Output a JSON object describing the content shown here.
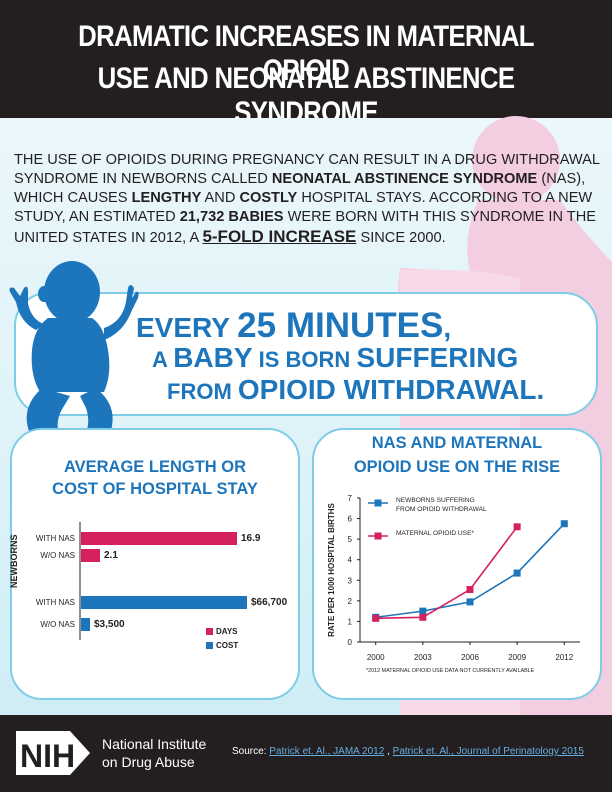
{
  "header": {
    "title_line1": "DRAMATIC INCREASES IN MATERNAL OPIOID",
    "title_line2": "USE AND NEONATAL ABSTINENCE SYNDROME"
  },
  "intro": {
    "p1": "THE USE OF OPIOIDS DURING PREGNANCY CAN RESULT IN A DRUG WITHDRAWAL SYNDROME IN NEWBORNS CALLED ",
    "nas_term": "NEONATAL ABSTINENCE SYNDROME",
    "p2": " (NAS), WHICH CAUSES ",
    "lengthy": "LENGTHY",
    "p3": " AND ",
    "costly": "COSTLY",
    "p4": " HOSPITAL STAYS. ACCORDING TO A NEW STUDY, AN ESTIMATED ",
    "babies": "21,732 BABIES",
    "p5": " WERE BORN WITH THIS SYNDROME IN THE UNITED STATES IN 2012, A ",
    "fold": "5-FOLD INCREASE",
    "p6": " SINCE 2000."
  },
  "banner": {
    "every": "EVERY ",
    "minutes": "25 MINUTES",
    "comma": ",",
    "a": "A ",
    "baby": "BABY",
    "is_born": " IS BORN ",
    "suffering": "SUFFERING",
    "from": "FROM ",
    "withdrawal": "OPIOID WITHDRAWAL",
    "period": "."
  },
  "left_panel": {
    "title_line1": "AVERAGE LENGTH OR",
    "title_line2": "COST OF HOSPITAL STAY",
    "y_label": "NEWBORNS",
    "legend_days": "DAYS",
    "legend_cost": "COST",
    "colors": {
      "days": "#d6215f",
      "cost": "#1d75bc"
    }
  },
  "right_panel": {
    "title_line1": "NAS AND MATERNAL",
    "title_line2": "OPIOID USE ON THE RISE"
  },
  "chart_data": [
    {
      "type": "bar",
      "orientation": "horizontal",
      "title": "AVERAGE LENGTH OR COST OF HOSPITAL STAY",
      "ylabel": "NEWBORNS",
      "groups": [
        {
          "name": "DAYS",
          "categories": [
            "WITH NAS",
            "W/O NAS"
          ],
          "values": [
            16.9,
            2.1
          ],
          "labels": [
            "16.9",
            "2.1"
          ],
          "color": "#d6215f"
        },
        {
          "name": "COST",
          "categories": [
            "WITH NAS",
            "W/O NAS"
          ],
          "values": [
            66700,
            3500
          ],
          "labels": [
            "$66,700",
            "$3,500"
          ],
          "color": "#1d75bc"
        }
      ],
      "legend": [
        "DAYS",
        "COST"
      ]
    },
    {
      "type": "line",
      "title": "NAS AND MATERNAL OPIOID USE ON THE RISE",
      "ylabel": "RATE PER 1000 HOSPITAL BIRTHS",
      "x_ticks": [
        "2000",
        "2003",
        "2006",
        "2009",
        "2012"
      ],
      "y_ticks": [
        "0",
        "1",
        "2",
        "3",
        "4",
        "5",
        "6",
        "7"
      ],
      "xlim": [
        1999,
        2013
      ],
      "ylim": [
        0,
        7
      ],
      "series": [
        {
          "name_line1": "NEWBORNS SUFFERING",
          "name_line2": "FROM OPIOID WITHDRAWAL",
          "color": "#1d75bc",
          "x": [
            2000,
            2003,
            2006,
            2009,
            2012
          ],
          "y": [
            1.2,
            1.5,
            1.95,
            3.35,
            5.75
          ]
        },
        {
          "name_line1": "MATERNAL OPIOID USE*",
          "name_line2": "",
          "color": "#d6215f",
          "x": [
            2000,
            2003,
            2006,
            2009
          ],
          "y": [
            1.15,
            1.2,
            2.55,
            5.6
          ]
        }
      ],
      "footnote": "*2012 MATERNAL OPIOID USE DATA NOT CURRENTLY AVAILABLE"
    }
  ],
  "footer": {
    "nih": "NIH",
    "org_line1": "National Institute",
    "org_line2": "on Drug Abuse",
    "source_prefix": "Source: ",
    "source1": "Patrick et. Al., JAMA 2012",
    "source_sep": " , ",
    "source2": "Patrick et. Al., Journal of Perinatology 2015"
  }
}
